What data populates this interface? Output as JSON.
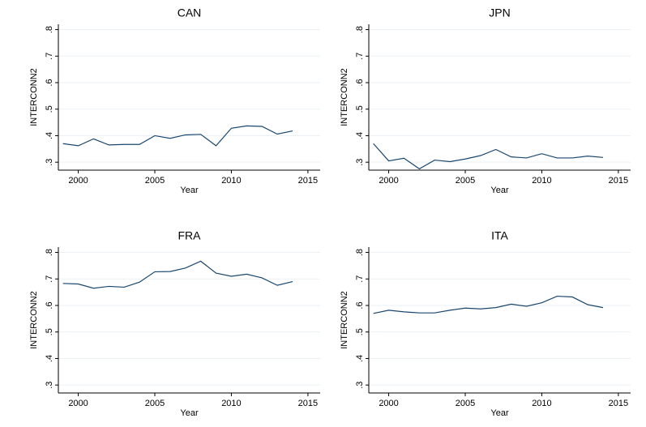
{
  "chart_data": [
    {
      "type": "line",
      "title": "CAN",
      "x_label": "Year",
      "y_label": "INTERCONN2",
      "x": [
        1999,
        2000,
        2001,
        2002,
        2003,
        2004,
        2005,
        2006,
        2007,
        2008,
        2009,
        2010,
        2011,
        2012,
        2013,
        2014
      ],
      "values": [
        0.37,
        0.362,
        0.388,
        0.365,
        0.367,
        0.367,
        0.4,
        0.39,
        0.403,
        0.405,
        0.362,
        0.428,
        0.437,
        0.435,
        0.406,
        0.418
      ],
      "color": "#1a476f",
      "xlim": [
        1998.7,
        2015.8
      ],
      "xticks": [
        2000,
        2005,
        2010,
        2015
      ],
      "ylim": [
        0.27,
        0.82
      ],
      "yticks": [
        {
          "value": 0.3,
          "label": ".3"
        },
        {
          "value": 0.4,
          "label": ".4"
        },
        {
          "value": 0.5,
          "label": ".5"
        },
        {
          "value": 0.6,
          "label": ".6"
        },
        {
          "value": 0.7,
          "label": ".7"
        },
        {
          "value": 0.8,
          "label": ".8"
        }
      ],
      "grid": true
    },
    {
      "type": "line",
      "title": "JPN",
      "x_label": "Year",
      "y_label": "INTERCONN2",
      "x": [
        1999,
        2000,
        2001,
        2002,
        2003,
        2004,
        2005,
        2006,
        2007,
        2008,
        2009,
        2010,
        2011,
        2012,
        2013,
        2014
      ],
      "values": [
        0.37,
        0.305,
        0.315,
        0.275,
        0.308,
        0.302,
        0.312,
        0.325,
        0.348,
        0.32,
        0.316,
        0.332,
        0.316,
        0.316,
        0.323,
        0.318
      ],
      "color": "#1a476f",
      "xlim": [
        1998.7,
        2015.8
      ],
      "xticks": [
        2000,
        2005,
        2010,
        2015
      ],
      "ylim": [
        0.27,
        0.82
      ],
      "yticks": [
        {
          "value": 0.3,
          "label": ".3"
        },
        {
          "value": 0.4,
          "label": ".4"
        },
        {
          "value": 0.5,
          "label": ".5"
        },
        {
          "value": 0.6,
          "label": ".6"
        },
        {
          "value": 0.7,
          "label": ".7"
        },
        {
          "value": 0.8,
          "label": ".8"
        }
      ],
      "grid": true
    },
    {
      "type": "line",
      "title": "FRA",
      "x_label": "Year",
      "y_label": "INTERCONN2",
      "x": [
        1999,
        2000,
        2001,
        2002,
        2003,
        2004,
        2005,
        2006,
        2007,
        2008,
        2009,
        2010,
        2011,
        2012,
        2013,
        2014
      ],
      "values": [
        0.683,
        0.681,
        0.665,
        0.672,
        0.669,
        0.688,
        0.727,
        0.728,
        0.741,
        0.767,
        0.722,
        0.71,
        0.718,
        0.704,
        0.676,
        0.69
      ],
      "color": "#1a476f",
      "xlim": [
        1998.7,
        2015.8
      ],
      "xticks": [
        2000,
        2005,
        2010,
        2015
      ],
      "ylim": [
        0.27,
        0.82
      ],
      "yticks": [
        {
          "value": 0.3,
          "label": ".3"
        },
        {
          "value": 0.4,
          "label": ".4"
        },
        {
          "value": 0.5,
          "label": ".5"
        },
        {
          "value": 0.6,
          "label": ".6"
        },
        {
          "value": 0.7,
          "label": ".7"
        },
        {
          "value": 0.8,
          "label": ".8"
        }
      ],
      "grid": true
    },
    {
      "type": "line",
      "title": "ITA",
      "x_label": "Year",
      "y_label": "INTERCONN2",
      "x": [
        1999,
        2000,
        2001,
        2002,
        2003,
        2004,
        2005,
        2006,
        2007,
        2008,
        2009,
        2010,
        2011,
        2012,
        2013,
        2014
      ],
      "values": [
        0.57,
        0.582,
        0.576,
        0.572,
        0.572,
        0.582,
        0.59,
        0.587,
        0.592,
        0.605,
        0.597,
        0.61,
        0.635,
        0.632,
        0.603,
        0.592
      ],
      "color": "#1a476f",
      "xlim": [
        1998.7,
        2015.8
      ],
      "xticks": [
        2000,
        2005,
        2010,
        2015
      ],
      "ylim": [
        0.27,
        0.82
      ],
      "yticks": [
        {
          "value": 0.3,
          "label": ".3"
        },
        {
          "value": 0.4,
          "label": ".4"
        },
        {
          "value": 0.5,
          "label": ".5"
        },
        {
          "value": 0.6,
          "label": ".6"
        },
        {
          "value": 0.7,
          "label": ".7"
        },
        {
          "value": 0.8,
          "label": ".8"
        }
      ],
      "grid": true
    }
  ]
}
